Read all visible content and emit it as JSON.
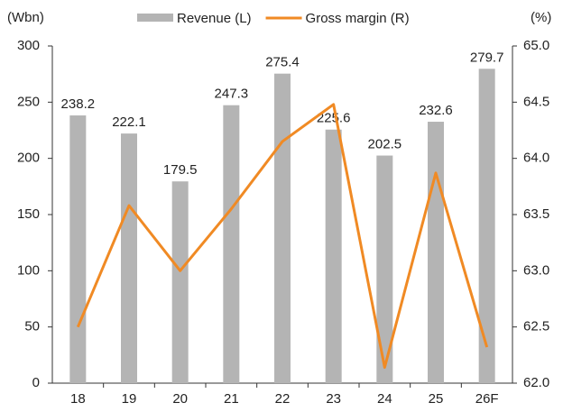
{
  "chart_data": {
    "type": "bar_line",
    "y_label": "(Wbn)",
    "y2_label": "(%)",
    "categories": [
      "18",
      "19",
      "20",
      "21",
      "22",
      "23",
      "24",
      "25",
      "26F"
    ],
    "series": [
      {
        "name": "Revenue (L)",
        "type": "bar",
        "color": "#b4b4b4",
        "axis": "y",
        "values": [
          238.2,
          222.1,
          179.5,
          247.3,
          275.4,
          225.6,
          202.5,
          232.6,
          279.7
        ]
      },
      {
        "name": "Gross margin (R)",
        "type": "line",
        "color": "#f08a24",
        "axis": "y2",
        "values": [
          62.5,
          63.58,
          63.0,
          63.55,
          64.15,
          64.48,
          62.14,
          63.87,
          62.32
        ]
      }
    ],
    "ylim": [
      0,
      300
    ],
    "yticks": [
      0,
      50,
      100,
      150,
      200,
      250,
      300
    ],
    "y2lim": [
      62.0,
      65.0
    ],
    "y2ticks": [
      {
        "value": 62.0,
        "label": "62.0"
      },
      {
        "value": 62.5,
        "label": "62.5"
      },
      {
        "value": 63.0,
        "label": "63.0"
      },
      {
        "value": 63.5,
        "label": "63.5"
      },
      {
        "value": 64.0,
        "label": "64.0"
      },
      {
        "value": 64.5,
        "label": "64.5"
      },
      {
        "value": 65.0,
        "label": "65.0"
      }
    ],
    "legend": "top"
  }
}
